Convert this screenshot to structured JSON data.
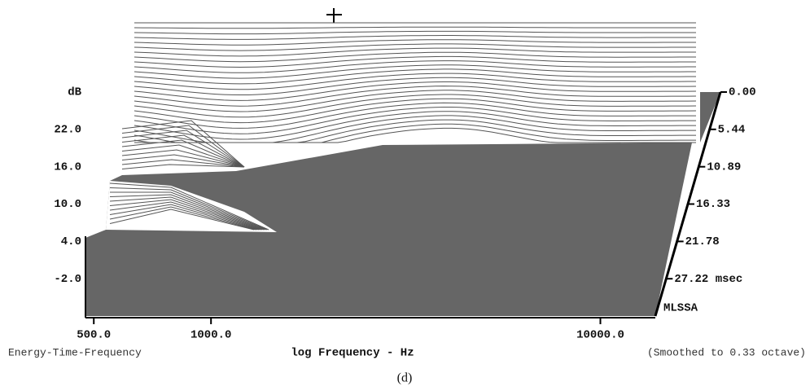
{
  "chart_data": {
    "type": "waterfall",
    "y_label": "dB",
    "ylim": [
      -8,
      28
    ],
    "yticks": [
      {
        "value": 22,
        "label": "22.0"
      },
      {
        "value": 16,
        "label": "16.0"
      },
      {
        "value": 10,
        "label": "10.0"
      },
      {
        "value": 4,
        "label": "4.0"
      },
      {
        "value": -2,
        "label": "-2.0"
      }
    ],
    "x_label": "log Frequency - Hz",
    "x_log": true,
    "xlim": [
      476,
      13840
    ],
    "xticks": [
      {
        "value": 500,
        "label": "500.0"
      },
      {
        "value": 1000,
        "label": "1000.0"
      },
      {
        "value": 10000,
        "label": "10000.0"
      }
    ],
    "zlim": [
      0,
      32.66
    ],
    "zticks": [
      {
        "value": 0,
        "label": "0.00"
      },
      5.44,
      10.89,
      16.33,
      21.78,
      {
        "value": 27.22,
        "label": "27.22 msec"
      }
    ],
    "brand": "MLSSA",
    "left_note": "Energy-Time-Frequency",
    "right_note": "(Smoothed to 0.33 octave)",
    "caption": "(d)"
  }
}
